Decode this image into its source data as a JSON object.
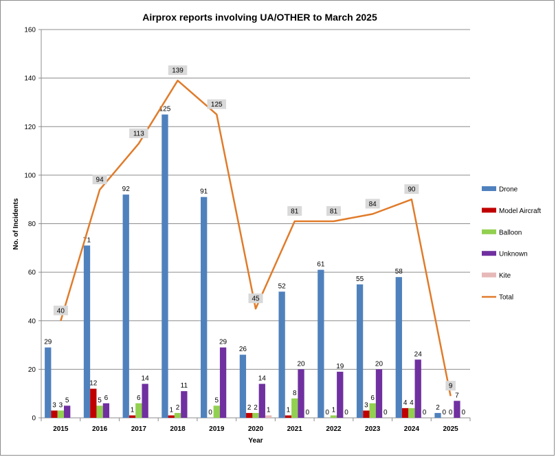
{
  "chart_data": {
    "type": "bar",
    "title": "Airprox reports involving UA/OTHER to March 2025",
    "xlabel": "Year",
    "ylabel": "No. of Incidents",
    "ylim": [
      0,
      160
    ],
    "yticks": [
      0,
      20,
      40,
      60,
      80,
      100,
      120,
      140,
      160
    ],
    "grid": true,
    "legend_position": "right",
    "categories": [
      "2015",
      "2016",
      "2017",
      "2018",
      "2019",
      "2020",
      "2021",
      "2022",
      "2023",
      "2024",
      "2025"
    ],
    "series": [
      {
        "name": "Drone",
        "kind": "bar",
        "color": "#4f81bd",
        "values": [
          29,
          71,
          92,
          125,
          91,
          26,
          52,
          61,
          55,
          58,
          2
        ]
      },
      {
        "name": "Model Aircraft",
        "kind": "bar",
        "color": "#c00000",
        "values": [
          3,
          12,
          1,
          1,
          0,
          2,
          1,
          0,
          3,
          4,
          0
        ]
      },
      {
        "name": "Balloon",
        "kind": "bar",
        "color": "#92d050",
        "values": [
          3,
          5,
          6,
          2,
          5,
          2,
          8,
          1,
          6,
          4,
          0
        ]
      },
      {
        "name": "Unknown",
        "kind": "bar",
        "color": "#7030a0",
        "values": [
          5,
          6,
          14,
          11,
          29,
          14,
          20,
          19,
          20,
          24,
          7
        ]
      },
      {
        "name": "Kite",
        "kind": "bar",
        "color": "#e6b9b8",
        "values": [
          null,
          null,
          null,
          null,
          null,
          1,
          0,
          0,
          0,
          0,
          0
        ]
      },
      {
        "name": "Total",
        "kind": "line",
        "color": "#e07b2a",
        "values": [
          40,
          94,
          113,
          139,
          125,
          45,
          81,
          81,
          84,
          90,
          9
        ]
      }
    ]
  }
}
